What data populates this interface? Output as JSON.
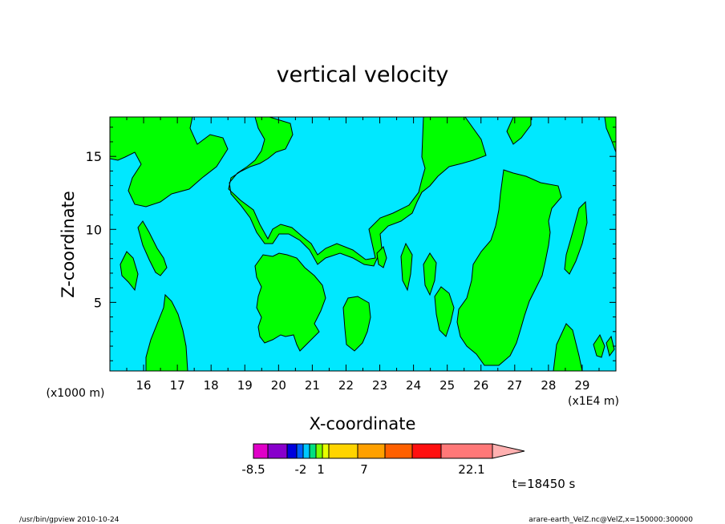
{
  "chart_data": {
    "type": "contour",
    "title": "vertical velocity",
    "xlabel": "X-coordinate",
    "ylabel": "Z-coordinate",
    "x_unit_label": "(x1E4 m)",
    "y_unit_label": "(x1000 m)",
    "x_ticks": [
      16,
      17,
      18,
      19,
      20,
      21,
      22,
      23,
      24,
      25,
      26,
      27,
      28,
      29
    ],
    "y_ticks": [
      5,
      10,
      15
    ],
    "xlim": [
      15,
      30
    ],
    "ylim": [
      0.3,
      17.7
    ],
    "grid": false,
    "fill_colors": {
      "background_level": "#00e8ff",
      "positive_level": "#00ff00",
      "contour_line": "#000000"
    },
    "colorbar": {
      "colors": [
        "#e000c8",
        "#8800cc",
        "#0000dd",
        "#0060ff",
        "#00c8ff",
        "#00e080",
        "#7cff00",
        "#e8ff00",
        "#ffd400",
        "#ffa000",
        "#ff6000",
        "#ff1010",
        "#ff7878",
        "#ffb0b0"
      ],
      "labels": [
        "-8.5",
        "-2",
        "1",
        "7",
        "22.1"
      ]
    },
    "time_annotation": "t=18450 s"
  },
  "footer": {
    "left": "/usr/bin/gpview  2010-10-24",
    "right": "arare-earth_VelZ.nc@VelZ,x=150000:300000"
  }
}
